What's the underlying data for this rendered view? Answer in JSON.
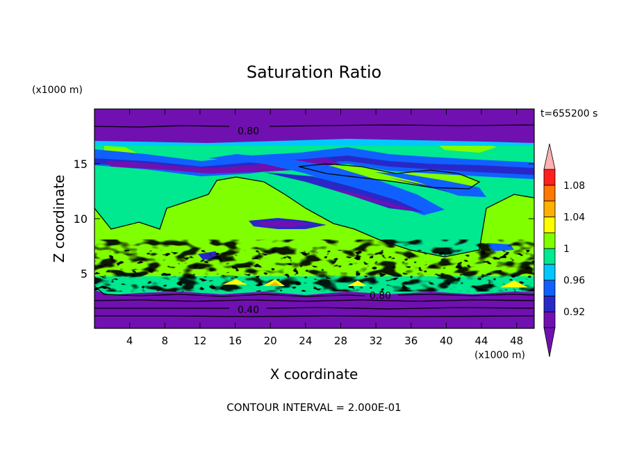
{
  "chart_data": {
    "type": "heatmap",
    "title": "Saturation Ratio",
    "xlabel": "X coordinate",
    "ylabel": "Z coordinate",
    "x_unit": "(x1000 m)",
    "y_unit": "(x1000 m)",
    "time_label": "t=655200 s",
    "footer": "CONTOUR INTERVAL = 2.000E-01",
    "xlim": [
      0,
      50
    ],
    "ylim": [
      0,
      20
    ],
    "x_ticks": [
      4,
      8,
      12,
      16,
      20,
      24,
      28,
      32,
      36,
      40,
      44,
      48
    ],
    "y_ticks": [
      5,
      10,
      15
    ],
    "contour_labels": [
      {
        "text": "0.80",
        "x": 17.5,
        "y": 18.0
      },
      {
        "text": "0.80",
        "x": 32.5,
        "y": 3.0
      },
      {
        "text": "0.40",
        "x": 17.5,
        "y": 1.7
      }
    ],
    "colorbar": {
      "levels": [
        0.9,
        0.92,
        0.94,
        0.96,
        0.98,
        1.0,
        1.02,
        1.04,
        1.06,
        1.08,
        1.1
      ],
      "tick_labels": [
        "0.92",
        "0.96",
        "1",
        "1.04",
        "1.08"
      ],
      "tick_values": [
        0.92,
        0.96,
        1.0,
        1.04,
        1.08
      ],
      "colors": [
        "#7010b0",
        "#2828c8",
        "#1060ff",
        "#00c8ff",
        "#00e890",
        "#80ff00",
        "#ffff00",
        "#ffb000",
        "#ff7800",
        "#ff2020"
      ],
      "under_color": "#7010b0",
      "over_color": "#ffb0b0"
    }
  }
}
